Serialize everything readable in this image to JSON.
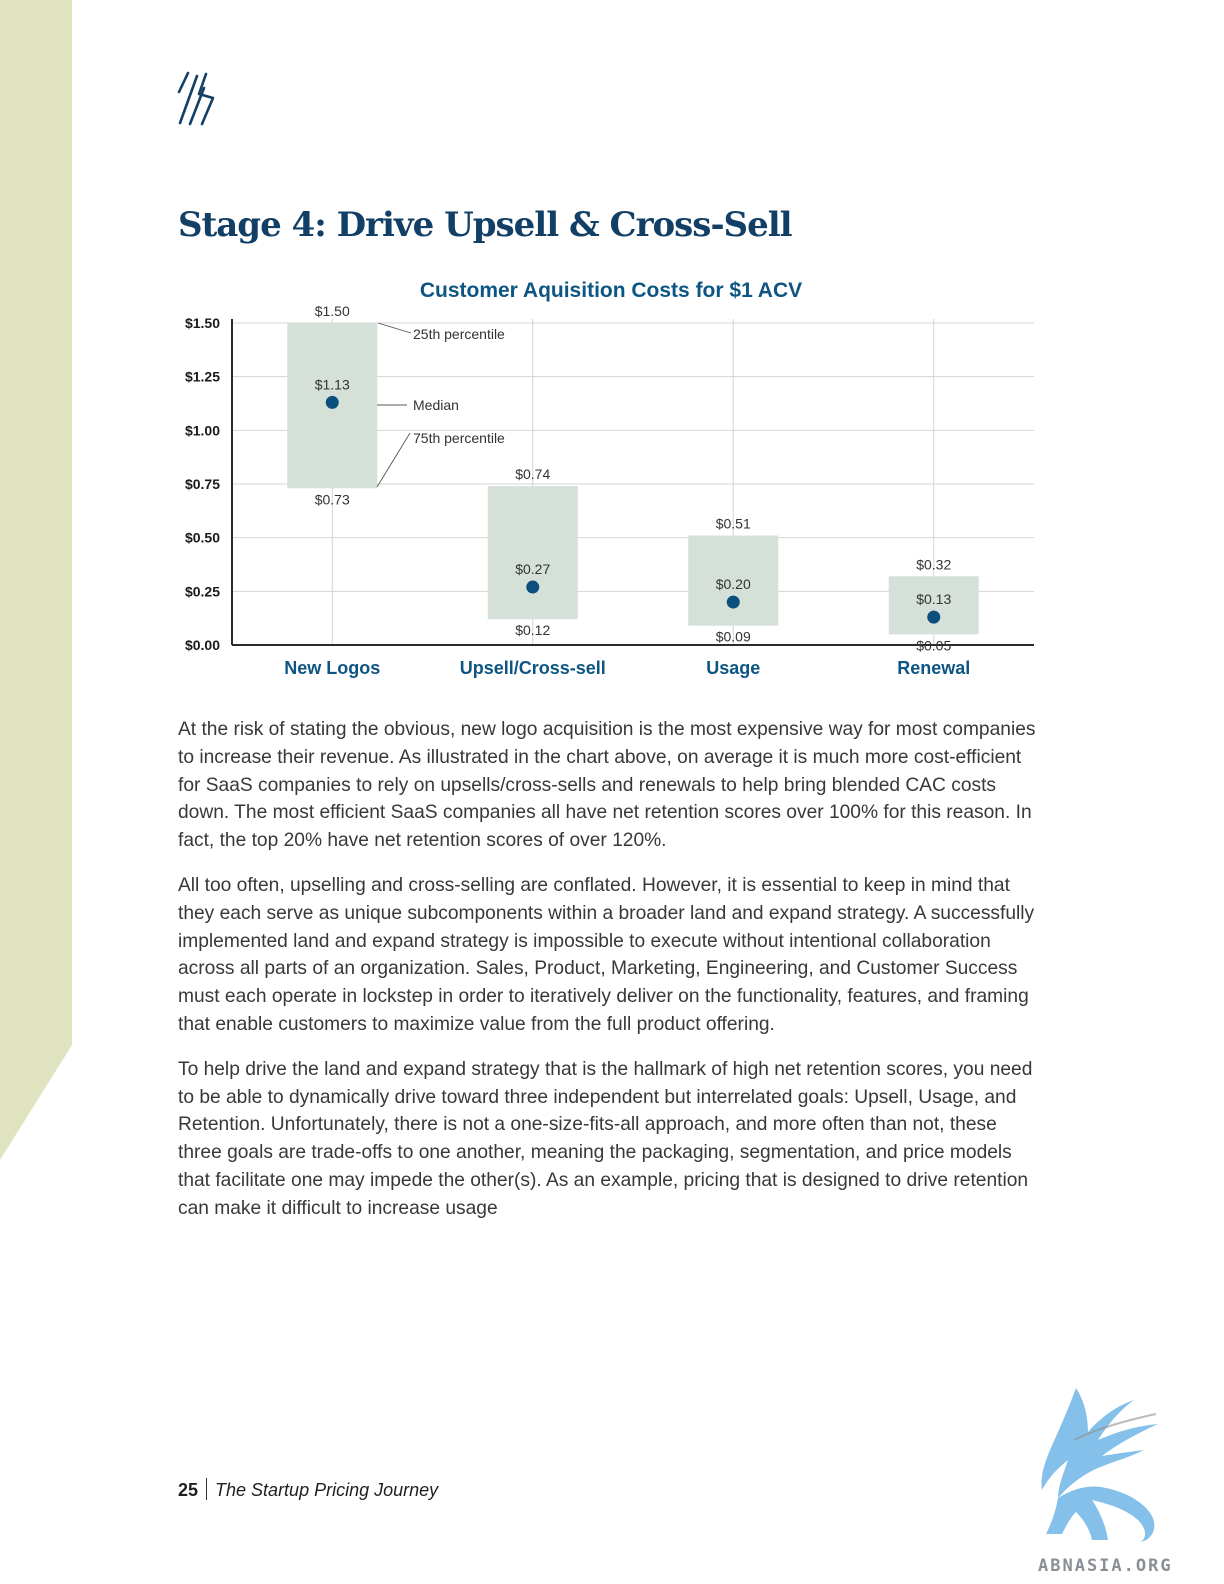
{
  "page": {
    "title": "Stage 4: Drive Upsell & Cross-Sell",
    "colors": {
      "accent": "#123f66",
      "side_band": "#dfe3bf",
      "box_fill": "#d5e0d8",
      "dot": "#0d4f7c"
    },
    "icons": [
      "logo-mark-icon",
      "griffin-watermark-icon"
    ],
    "paragraphs": [
      "At the risk of stating the obvious, new logo acquisition is the most expensive way for most companies to increase their revenue. As illustrated in the chart above, on average it is much more cost-efficient for SaaS companies to rely on upsells/cross-sells and renewals to help bring blended CAC costs down. The most efficient SaaS companies all have net retention scores over 100% for this reason. In fact, the top 20% have net retention scores of over 120%.",
      "All too often, upselling and cross-selling are conflated. However, it is essential to keep in mind that they each serve as unique subcomponents within a broader land and expand strategy. A successfully implemented land and expand strategy is impossible to execute without intentional collaboration across all parts of an organization. Sales, Product, Marketing, Engineering, and Customer Success must each operate in lockstep in order to iteratively deliver on the functionality, features, and framing that enable customers to maximize value from the full product offering.",
      "To help drive the land and expand strategy that is the hallmark of high net retention scores, you need to be able to dynamically drive toward three independent but interrelated goals: Upsell, Usage, and Retention. Unfortunately, there is not a one-size-fits-all approach, and more often than not, these three goals are trade-offs to one another, meaning the packaging, segmentation, and price models that facilitate one may impede the other(s). As an example, pricing that is designed to drive retention can make it difficult to increase usage"
    ],
    "footer": {
      "page_number": "25",
      "publication": "The Startup Pricing Journey"
    },
    "watermark_text": "ABNASIA.ORG"
  },
  "chart_data": {
    "type": "range",
    "title": "Customer Aquisition Costs for $1 ACV",
    "categories": [
      "New Logos",
      "Upsell/Cross-sell",
      "Usage",
      "Renewal"
    ],
    "high": [
      1.5,
      0.74,
      0.51,
      0.32
    ],
    "median": [
      1.13,
      0.27,
      0.2,
      0.13
    ],
    "low": [
      0.73,
      0.12,
      0.09,
      0.05
    ],
    "high_labels": [
      "$1.50",
      "$0.74",
      "$0.51",
      "$0.32"
    ],
    "median_labels": [
      "$1.13",
      "$0.27",
      "$0.20",
      "$0.13"
    ],
    "low_labels": [
      "$0.73",
      "$0.12",
      "$0.09",
      "$0.05"
    ],
    "yticks": [
      0,
      0.25,
      0.5,
      0.75,
      1.0,
      1.25,
      1.5
    ],
    "ytick_labels": [
      "$0.00",
      "$0.25",
      "$0.50",
      "$0.75",
      "$1.00",
      "$1.25",
      "$1.50"
    ],
    "ylim": [
      0,
      1.5
    ],
    "grid": true,
    "annotations": [
      "25th percentile",
      "Median",
      "75th percentile"
    ]
  }
}
